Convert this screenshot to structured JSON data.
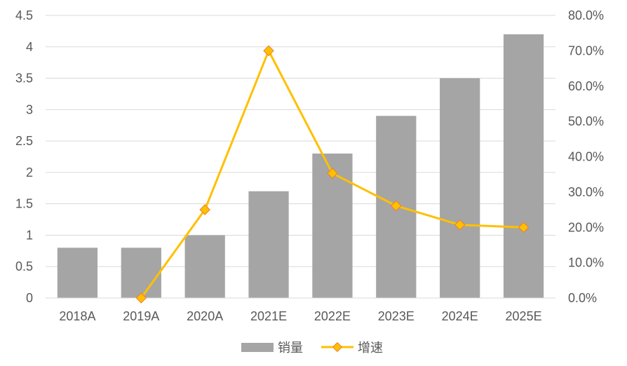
{
  "chart_data": {
    "type": "bar",
    "categories": [
      "2018A",
      "2019A",
      "2020A",
      "2021E",
      "2022E",
      "2023E",
      "2024E",
      "2025E"
    ],
    "series": [
      {
        "name": "销量",
        "type": "bar",
        "axis": "left",
        "color": "#A5A5A5",
        "values": [
          0.8,
          0.8,
          1.0,
          1.7,
          2.3,
          2.9,
          3.5,
          4.2
        ]
      },
      {
        "name": "增速",
        "type": "line",
        "axis": "right",
        "color": "#FFC000",
        "marker": "diamond",
        "values": [
          null,
          0.0,
          25.0,
          70.0,
          35.3,
          26.1,
          20.7,
          20.0
        ]
      }
    ],
    "y_left": {
      "min": 0,
      "max": 4.5,
      "ticks": [
        "0",
        "0.5",
        "1",
        "1.5",
        "2",
        "2.5",
        "3",
        "3.5",
        "4",
        "4.5"
      ]
    },
    "y_right": {
      "min": 0,
      "max": 80,
      "ticks": [
        "0.0%",
        "10.0%",
        "20.0%",
        "30.0%",
        "40.0%",
        "50.0%",
        "60.0%",
        "70.0%",
        "80.0%"
      ]
    },
    "grid": true,
    "legend": "bottom"
  }
}
